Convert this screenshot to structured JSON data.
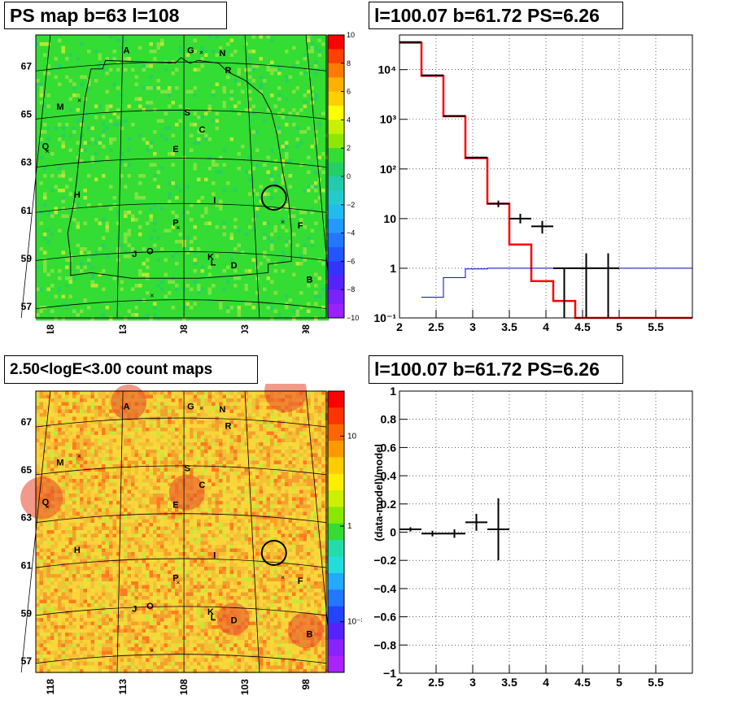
{
  "panels": {
    "ps_map": {
      "title": "PS map b=63 l=108",
      "y_ticks": [
        "67",
        "65",
        "63",
        "61",
        "59",
        "57"
      ],
      "x_ticks": [
        "118",
        "113",
        "108",
        "103",
        "98"
      ],
      "colorbar": {
        "ticks": [
          "10",
          "8",
          "6",
          "4",
          "2",
          "0",
          "−2",
          "−4",
          "−6",
          "−8",
          "−10"
        ],
        "range": [
          -10,
          10
        ]
      },
      "source_labels": [
        "A",
        "G",
        "N",
        "R",
        "M",
        "S",
        "C",
        "Q",
        "E",
        "H",
        "I",
        "P",
        "F",
        "J",
        "O",
        "K",
        "L",
        "D",
        "B"
      ]
    },
    "count_map": {
      "title": "2.50<logE<3.00 count maps",
      "y_ticks": [
        "67",
        "65",
        "63",
        "61",
        "59",
        "57"
      ],
      "x_ticks": [
        "118",
        "113",
        "108",
        "103",
        "98"
      ],
      "colorbar": {
        "ticks": [
          "10",
          "1",
          "10⁻¹"
        ],
        "scale": "log"
      },
      "source_labels": [
        "A",
        "G",
        "N",
        "R",
        "M",
        "S",
        "C",
        "Q",
        "E",
        "H",
        "I",
        "P",
        "F",
        "J",
        "O",
        "K",
        "L",
        "D",
        "B"
      ]
    },
    "spectrum": {
      "title": "l=100.07 b=61.72 PS=6.26",
      "x_ticks": [
        "2",
        "2.5",
        "3",
        "3.5",
        "4",
        "4.5",
        "5",
        "5.5"
      ],
      "y_ticks": [
        "10⁻¹",
        "1",
        "10",
        "10²",
        "10³",
        "10⁴"
      ]
    },
    "residual": {
      "title": "l=100.07 b=61.72 PS=6.26",
      "ylabel": "(data-model)/model",
      "x_ticks": [
        "2",
        "2.5",
        "3",
        "3.5",
        "4",
        "4.5",
        "5",
        "5.5"
      ],
      "y_ticks": [
        "1",
        "0.8",
        "0.6",
        "0.4",
        "0.2",
        "0",
        "−0.2",
        "−0.4",
        "−0.6",
        "−0.8",
        "−1"
      ]
    }
  },
  "chart_data": [
    {
      "type": "heatmap",
      "title": "PS map b=63 l=108",
      "x_range": [
        119,
        96
      ],
      "y_range": [
        56.5,
        68.2
      ],
      "z_range": [
        -10,
        10
      ],
      "grid": "galactic-coordinate overlay",
      "colors": {
        "bg": "#33dd33"
      }
    },
    {
      "type": "heatmap",
      "title": "2.50<logE<3.00 count maps",
      "x_range": [
        119,
        96
      ],
      "y_range": [
        56.5,
        68.2
      ],
      "z_scale": "log",
      "colors": {
        "bg": "#eecc33"
      }
    },
    {
      "type": "line",
      "title": "l=100.07 b=61.72 PS=6.26",
      "x_range": [
        2,
        6
      ],
      "y_range": [
        0.1,
        50000
      ],
      "y_scale": "log",
      "grid": true,
      "series": [
        {
          "style": "step",
          "color": "#ff0000",
          "edges": [
            2,
            2.3,
            2.6,
            2.9,
            3.2,
            3.5,
            3.8,
            4.1,
            4.4,
            6
          ],
          "values": [
            35000,
            7500,
            1150,
            165,
            20,
            3,
            0.55,
            0.22,
            0.1
          ]
        },
        {
          "style": "step",
          "color": "#0000cc",
          "edges": [
            2.3,
            2.6,
            2.9,
            3.2,
            3.5,
            3.8,
            4.1,
            4.4,
            6
          ],
          "values": [
            0.26,
            0.65,
            0.97,
            1.0,
            1.0,
            1.0,
            1.0,
            1.0
          ]
        },
        {
          "style": "points",
          "color": "#000000",
          "x": [
            2.15,
            2.45,
            2.75,
            3.05,
            3.35,
            3.65,
            3.95,
            4.25,
            4.55,
            4.85
          ],
          "xerr": [
            0.15,
            0.15,
            0.15,
            0.15,
            0.15,
            0.15,
            0.15,
            0.15,
            0.15,
            0.15
          ],
          "y": [
            36000,
            7700,
            1170,
            170,
            20,
            10,
            7,
            1,
            1,
            1
          ],
          "ylo": [
            35700,
            7600,
            1140,
            163,
            17,
            8,
            5,
            0.1,
            0.1,
            0.1
          ],
          "yhi": [
            36300,
            7800,
            1200,
            177,
            23,
            12.5,
            9,
            1,
            2,
            2
          ]
        }
      ]
    },
    {
      "type": "scatter",
      "title": "l=100.07 b=61.72 PS=6.26",
      "ylabel": "(data-model)/model",
      "x_range": [
        2,
        6
      ],
      "y_range": [
        -1,
        1
      ],
      "grid": true,
      "series": [
        {
          "color": "#000000",
          "x": [
            2.15,
            2.45,
            2.75,
            3.05,
            3.35
          ],
          "xerr": [
            0.15,
            0.15,
            0.15,
            0.15,
            0.15
          ],
          "y": [
            0.02,
            -0.01,
            -0.01,
            0.07,
            0.02
          ],
          "yerr": [
            0.015,
            0.02,
            0.03,
            0.06,
            0.22
          ]
        }
      ]
    }
  ]
}
